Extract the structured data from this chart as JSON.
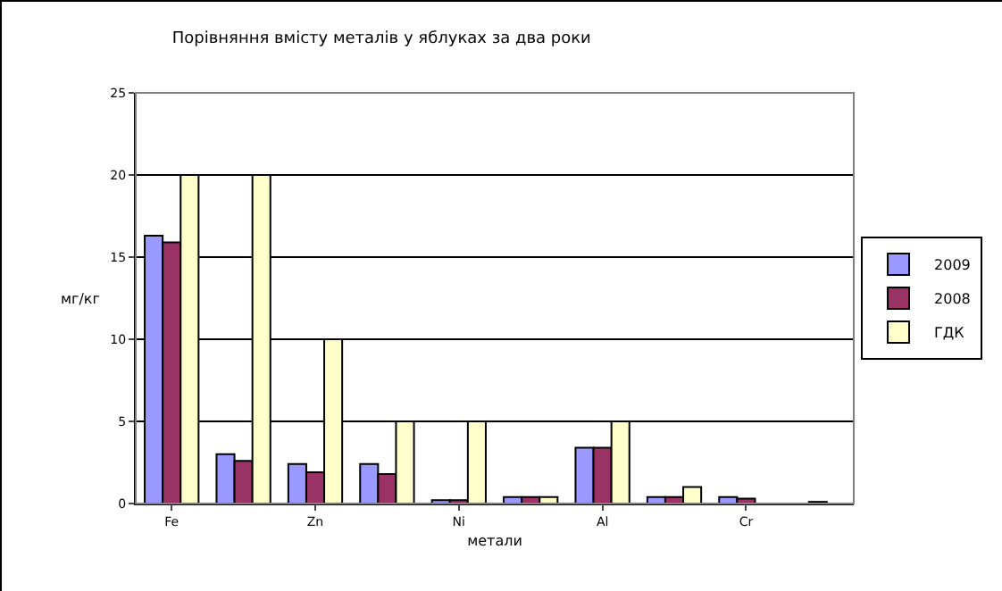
{
  "chart_data": {
    "type": "bar",
    "title": "Порівняння вмісту металів у яблуках за два роки",
    "xlabel": "метали",
    "ylabel": "мг/кг",
    "categories": [
      "Fe",
      null,
      "Zn",
      null,
      "Ni",
      null,
      "Al",
      null,
      "Cr",
      null
    ],
    "series": [
      {
        "name": "2009",
        "color": "#9999ff",
        "values": [
          16.3,
          3.0,
          2.4,
          2.4,
          0.2,
          0.4,
          3.4,
          0.4,
          0.4,
          null
        ]
      },
      {
        "name": "2008",
        "color": "#993366",
        "values": [
          15.9,
          2.6,
          1.9,
          1.8,
          0.2,
          0.4,
          3.4,
          0.4,
          0.3,
          0.1
        ]
      },
      {
        "name": "ГДК",
        "color": "#ffffcc",
        "values": [
          20,
          20,
          10,
          5,
          5,
          0.4,
          5,
          1.0,
          null,
          null
        ]
      }
    ],
    "ylim": [
      0,
      25
    ],
    "yticks": [
      0,
      5,
      10,
      15,
      20,
      25
    ],
    "grid": "y",
    "legend": "right"
  }
}
